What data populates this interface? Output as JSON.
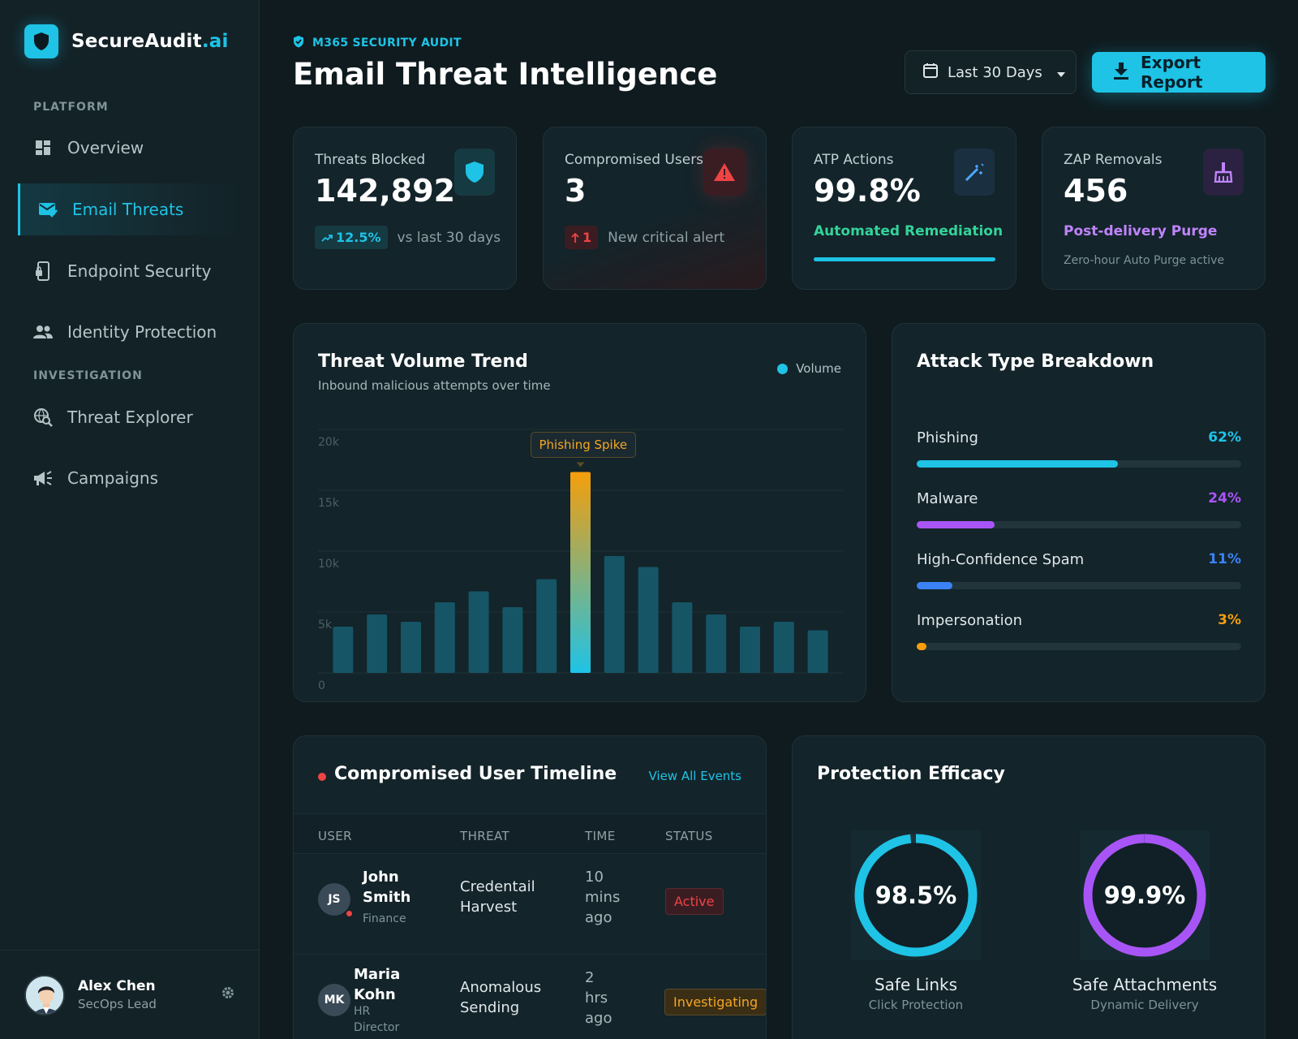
{
  "brand": {
    "name": "SecureAudit",
    "accent": ".ai"
  },
  "nav": {
    "section_platform": "PLATFORM",
    "section_investigation": "INVESTIGATION",
    "items": [
      {
        "label": "Overview",
        "icon": "dashboard-icon"
      },
      {
        "label": "Email Threats",
        "icon": "mail-check-icon",
        "active": true
      },
      {
        "label": "Endpoint Security",
        "icon": "device-lock-icon"
      },
      {
        "label": "Identity Protection",
        "icon": "people-icon"
      },
      {
        "label": "Threat Explorer",
        "icon": "search-globe-icon"
      },
      {
        "label": "Campaigns",
        "icon": "megaphone-icon"
      }
    ]
  },
  "user": {
    "name": "Alex Chen",
    "role": "SecOps Lead"
  },
  "header": {
    "eyebrow": "M365 SECURITY AUDIT",
    "title": "Email Threat Intelligence",
    "date_range": "Last 30 Days",
    "export_label": "Export Report"
  },
  "stats": {
    "threats": {
      "label": "Threats Blocked",
      "value": "142,892",
      "delta": "12.5%",
      "delta_text": "vs last 30 days"
    },
    "compromised": {
      "label": "Compromised Users",
      "value": "3",
      "delta": "1",
      "delta_text": "New critical alert"
    },
    "atp": {
      "label": "ATP Actions",
      "value": "99.8%",
      "note": "Automated Remediation",
      "progress": 1.0
    },
    "zap": {
      "label": "ZAP Removals",
      "value": "456",
      "note": "Post-delivery Purge",
      "sub": "Zero-hour Auto Purge active"
    }
  },
  "trend": {
    "title": "Threat Volume Trend",
    "subtitle": "Inbound malicious attempts over time",
    "legend": "Volume",
    "annotation": "Phishing Spike"
  },
  "chart_data": {
    "type": "bar",
    "series": [
      {
        "name": "Volume",
        "values": [
          3800,
          4800,
          4200,
          5800,
          6700,
          5400,
          7700,
          16500,
          9600,
          8700,
          5800,
          4800,
          3800,
          4200,
          3500
        ]
      }
    ],
    "yticks": [
      "20k",
      "15k",
      "10k",
      "5k",
      "0"
    ],
    "ylim": [
      0,
      20000
    ],
    "highlight_index": 7,
    "grid": true,
    "legend_position": "top-right"
  },
  "breakdown": {
    "title": "Attack Type Breakdown",
    "items": [
      {
        "label": "Phishing",
        "pct": "62%",
        "value": 62,
        "color": "#1ec3e6"
      },
      {
        "label": "Malware",
        "pct": "24%",
        "value": 24,
        "color": "#a855f7"
      },
      {
        "label": "High-Confidence Spam",
        "pct": "11%",
        "value": 11,
        "color": "#3b82f6"
      },
      {
        "label": "Impersonation",
        "pct": "3%",
        "value": 3,
        "color": "#f59e0b"
      }
    ]
  },
  "timeline": {
    "title": "Compromised User Timeline",
    "view_all": "View All Events",
    "columns": [
      "USER",
      "THREAT",
      "TIME",
      "STATUS"
    ],
    "rows": [
      {
        "initials": "JS",
        "name_line1": "John",
        "name_line2": "Smith",
        "dept": "Finance",
        "threat_line1": "Credentail",
        "threat_line2": "Harvest",
        "time_line1": "10",
        "time_line2": "mins",
        "time_line3": "ago",
        "status": "Active"
      },
      {
        "initials": "MK",
        "name_line1": "Maria",
        "name_line2": "Kohn",
        "dept_line1": "HR",
        "dept_line2": "Director",
        "threat_line1": "Anomalous",
        "threat_line2": "Sending",
        "time_line1": "2",
        "time_line2": "hrs",
        "time_line3": "ago",
        "status": "Investigating"
      }
    ]
  },
  "efficacy": {
    "title": "Protection Efficacy",
    "rings": [
      {
        "value": "98.5%",
        "fraction": 0.985,
        "label": "Safe Links",
        "sub": "Click Protection",
        "color": "#1ec3e6"
      },
      {
        "value": "99.9%",
        "fraction": 0.999,
        "label": "Safe Attachments",
        "sub": "Dynamic Delivery",
        "color": "#a855f7"
      }
    ]
  }
}
